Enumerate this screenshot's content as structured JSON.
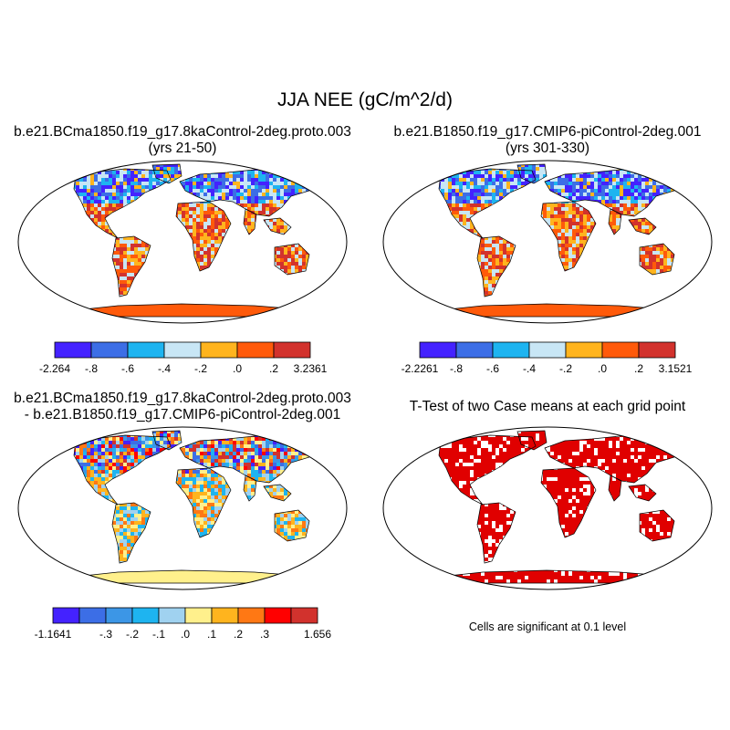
{
  "figure": {
    "title": "JJA NEE (gC/m^2/d)"
  },
  "panels": [
    {
      "id": "case1",
      "title_line1": "b.e21.BCma1850.f19_g17.8kaControl-2deg.proto.003",
      "title_line2": "(yrs 21-50)",
      "colorbar": {
        "colors": [
          "#4422ff",
          "#3c6ee6",
          "#1eb4f0",
          "#c8e6f5",
          "#ffb41e",
          "#ff5a0a",
          "#d2322d"
        ],
        "labels": [
          "-2.264",
          "-.8",
          "-.6",
          "-.4",
          "-.2",
          ".0",
          ".2",
          "3.2361"
        ]
      }
    },
    {
      "id": "case2",
      "title_line1": "b.e21.B1850.f19_g17.CMIP6-piControl-2deg.001",
      "title_line2": "(yrs 301-330)",
      "colorbar": {
        "colors": [
          "#4422ff",
          "#3c6ee6",
          "#1eb4f0",
          "#c8e6f5",
          "#ffb41e",
          "#ff5a0a",
          "#d2322d"
        ],
        "labels": [
          "-2.2261",
          "-.8",
          "-.6",
          "-.4",
          "-.2",
          ".0",
          ".2",
          "3.1521"
        ]
      }
    },
    {
      "id": "difference",
      "title_line1": "b.e21.BCma1850.f19_g17.8kaControl-2deg.proto.003",
      "title_line2": "- b.e21.B1850.f19_g17.CMIP6-piControl-2deg.001",
      "colorbar": {
        "colors": [
          "#4422ff",
          "#3c6ee6",
          "#3c96e6",
          "#1eb4f0",
          "#a0d2f0",
          "#fff08c",
          "#ffb41e",
          "#ff7814",
          "#ff0000",
          "#d2322d"
        ],
        "labels": [
          "-1.1641",
          "",
          "-.3",
          "-.2",
          "-.1",
          ".0",
          ".1",
          ".2",
          ".3",
          "",
          "1.656"
        ]
      }
    },
    {
      "id": "ttest",
      "title_line1": "T-Test of two Case means at each grid point",
      "note": "Cells are significant at 0.1 level",
      "colors": {
        "significant": "#e00000"
      }
    }
  ]
}
